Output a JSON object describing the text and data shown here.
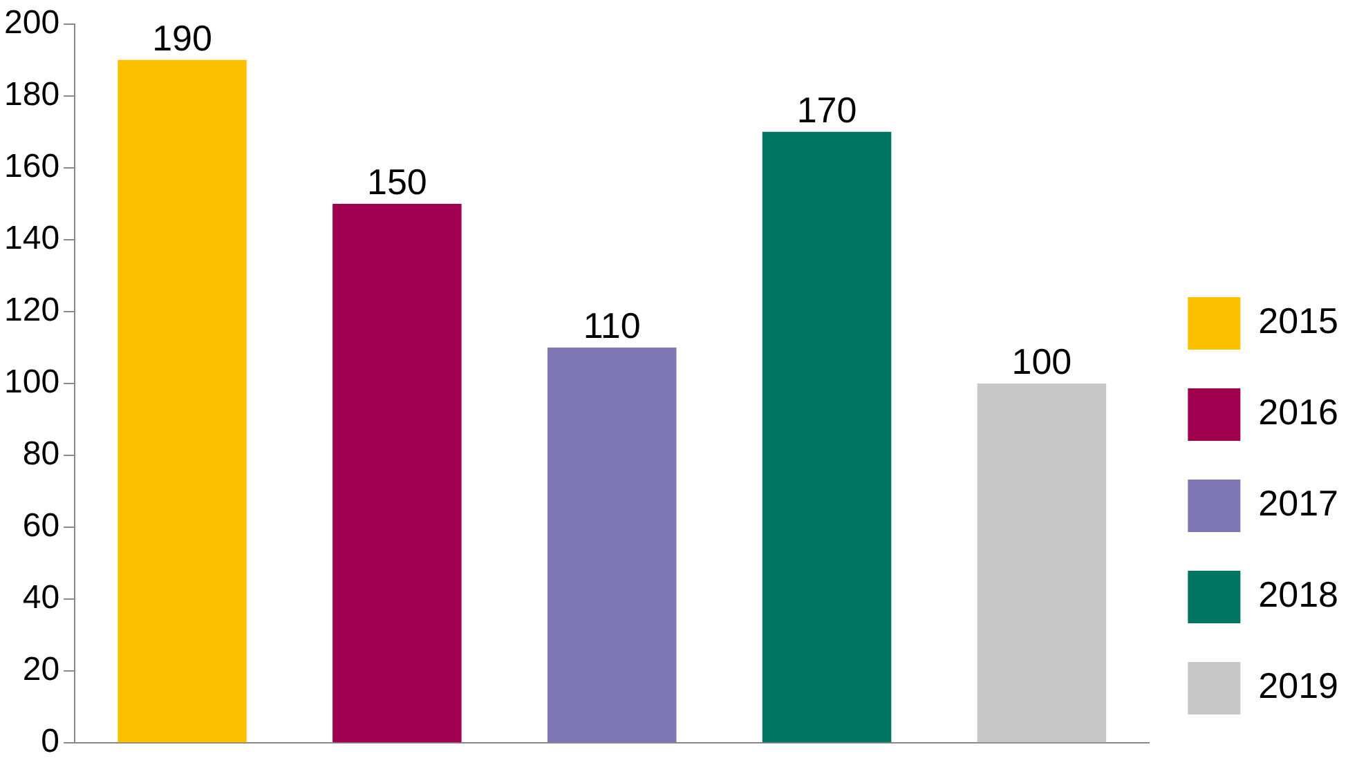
{
  "chart_data": {
    "type": "bar",
    "categories": [
      null,
      null,
      null,
      null,
      null
    ],
    "series": [
      {
        "name": "2015",
        "color": "#fbc000",
        "values": [
          190,
          null,
          null,
          null,
          null
        ]
      },
      {
        "name": "2016",
        "color": "#a0004f",
        "values": [
          null,
          150,
          null,
          null,
          null
        ]
      },
      {
        "name": "2017",
        "color": "#7f77b5",
        "values": [
          null,
          null,
          110,
          null,
          null
        ]
      },
      {
        "name": "2018",
        "color": "#007560",
        "values": [
          null,
          null,
          null,
          170,
          null
        ]
      },
      {
        "name": "2019",
        "color": "#c8c8c8",
        "values": [
          null,
          null,
          null,
          null,
          100
        ]
      }
    ],
    "ylim": [
      0,
      200
    ],
    "yticks": [
      0,
      20,
      40,
      60,
      80,
      100,
      120,
      140,
      160,
      180,
      200
    ],
    "grid": false,
    "legend": "right",
    "data_labels": true
  }
}
